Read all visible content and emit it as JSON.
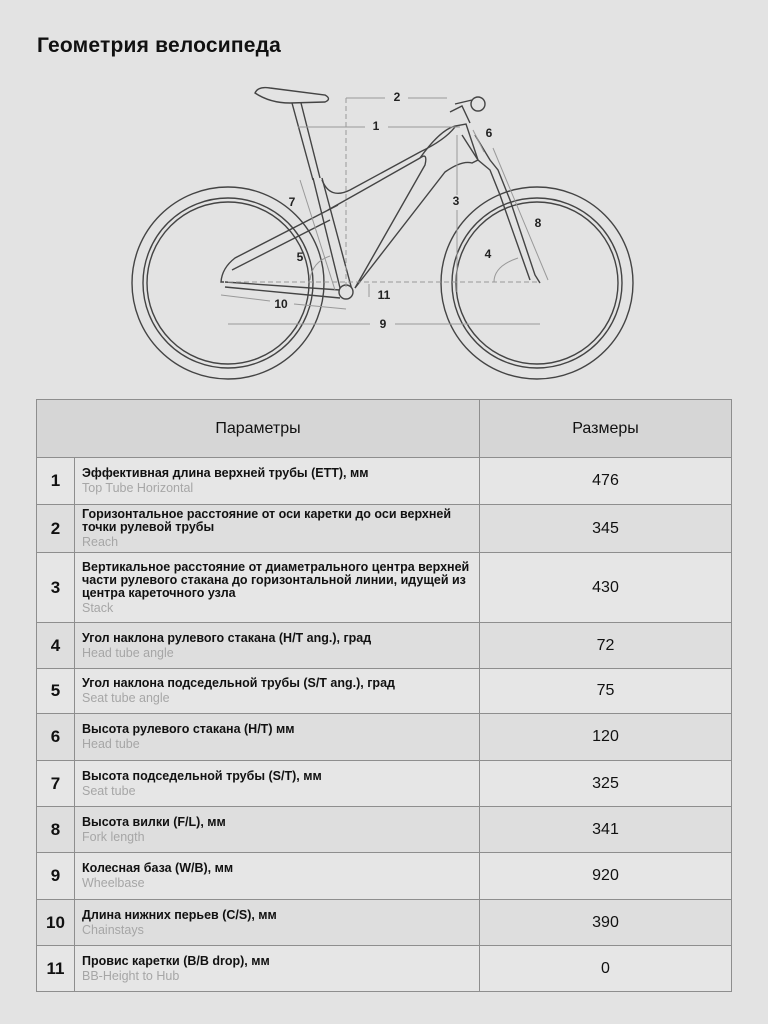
{
  "title": "Геометрия велосипеда",
  "diagram": {
    "labels": [
      "1",
      "2",
      "3",
      "4",
      "5",
      "6",
      "7",
      "8",
      "9",
      "10",
      "11"
    ]
  },
  "table": {
    "headers": {
      "params": "Параметры",
      "sizes": "Размеры"
    },
    "rows": [
      {
        "n": "1",
        "ru": "Эффективная длина верхней трубы (ETT), мм",
        "en": "Top Tube Horizontal",
        "value": "476"
      },
      {
        "n": "2",
        "ru": "Горизонтальное расстояние от оси каретки до оси верхней точки рулевой трубы",
        "en": "Reach",
        "value": "345"
      },
      {
        "n": "3",
        "ru": "Вертикальное расстояние от диаметрального центра верхней части рулевого стакана до горизонтальной линии, идущей из центра кареточного узла",
        "en": "Stack",
        "value": "430"
      },
      {
        "n": "4",
        "ru": "Угол наклона рулевого стакана (H/T ang.), град",
        "en": "Head tube angle",
        "value": "72"
      },
      {
        "n": "5",
        "ru": "Угол наклона подседельной трубы (S/T ang.), град",
        "en": "Seat tube angle",
        "value": "75"
      },
      {
        "n": "6",
        "ru": "Высота рулевого стакана (H/T) мм",
        "en": "Head tube",
        "value": "120"
      },
      {
        "n": "7",
        "ru": "Высота подседельной трубы (S/T), мм",
        "en": "Seat tube",
        "value": "325"
      },
      {
        "n": "8",
        "ru": "Высота вилки (F/L), мм",
        "en": "Fork length",
        "value": "341"
      },
      {
        "n": "9",
        "ru": "Колесная база (W/B), мм",
        "en": "Wheelbase",
        "value": "920"
      },
      {
        "n": "10",
        "ru": "Длина нижних перьев (C/S), мм",
        "en": "Chainstays",
        "value": "390"
      },
      {
        "n": "11",
        "ru": "Провис каретки (B/B drop), мм",
        "en": "BB-Height to Hub",
        "value": "0"
      }
    ]
  }
}
